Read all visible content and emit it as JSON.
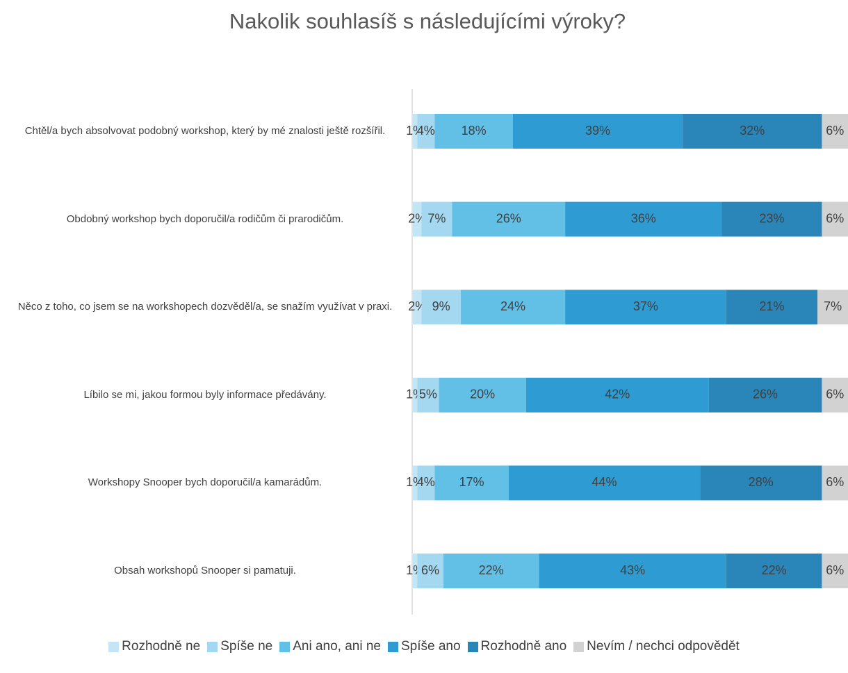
{
  "chart_data": {
    "type": "bar",
    "orientation": "horizontal",
    "stacked": true,
    "title": "Nakolik souhlasíš s následujícími výroky?",
    "categories": [
      "Chtěl/a bych absolvovat podobný workshop, který by mé znalosti ještě rozšířil.",
      "Obdobný workshop bych doporučil/a rodičům či prarodičům.",
      "Něco z toho, co jsem se na workshopech dozvěděl/a, se snažím využívat v praxi.",
      "Líbilo se mi, jakou formou byly informace předávány.",
      "Workshopy Snooper bych doporučil/a kamarádům.",
      "Obsah workshopů Snooper si pamatuji."
    ],
    "xlim": [
      0,
      100
    ],
    "series": [
      {
        "name": "Rozhodně ne",
        "color": "#c3e5f4",
        "values": [
          1,
          2,
          2,
          1,
          1,
          1
        ],
        "value_labels": [
          "1%",
          "2%",
          "2%",
          "1%",
          "1%",
          "1%"
        ]
      },
      {
        "name": "Spíše ne",
        "color": "#a3d8f0",
        "values": [
          4,
          7,
          9,
          5,
          4,
          6
        ],
        "value_labels": [
          "4%",
          "7%",
          "9%",
          "5%",
          "4%",
          "6%"
        ]
      },
      {
        "name": "Ani ano, ani ne",
        "color": "#62c0e7",
        "values": [
          18,
          26,
          24,
          20,
          17,
          22
        ],
        "value_labels": [
          "18%",
          "26%",
          "24%",
          "20%",
          "17%",
          "22%"
        ]
      },
      {
        "name": "Spíše ano",
        "color": "#2e9bd2",
        "values": [
          39,
          36,
          37,
          42,
          44,
          43
        ],
        "value_labels": [
          "39%",
          "36%",
          "37%",
          "42%",
          "44%",
          "43%"
        ]
      },
      {
        "name": "Rozhodně ano",
        "color": "#2a85b8",
        "values": [
          32,
          23,
          21,
          26,
          28,
          22
        ],
        "value_labels": [
          "32%",
          "23%",
          "21%",
          "26%",
          "28%",
          "22%"
        ]
      },
      {
        "name": "Nevím / nechci odpovědět",
        "color": "#d2d2d2",
        "values": [
          6,
          6,
          7,
          6,
          6,
          6
        ],
        "value_labels": [
          "6%",
          "6%",
          "7%",
          "6%",
          "6%",
          "6%"
        ]
      }
    ]
  }
}
